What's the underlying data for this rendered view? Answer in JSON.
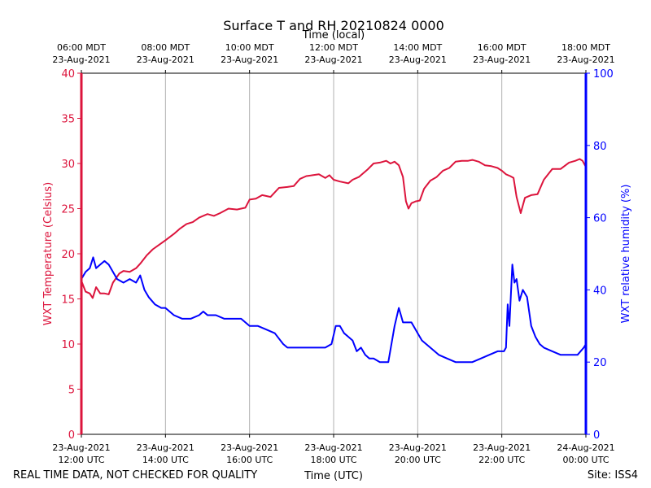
{
  "chart_data": {
    "type": "line",
    "title": "Surface T and RH 20210824 0000",
    "top_axis_label": "Time (local)",
    "xlabel": "Time (UTC)",
    "ylabel_left": "WXT Temperature (Celsius)",
    "ylabel_right": "WXT relative humidity (%)",
    "xlim": [
      12.0,
      24.0
    ],
    "ylim_left": [
      0,
      40
    ],
    "ylim_right": [
      0,
      100
    ],
    "grid": "vertical",
    "left_ticks": [
      0,
      5,
      10,
      15,
      20,
      25,
      30,
      35,
      40
    ],
    "right_ticks": [
      0,
      20,
      40,
      60,
      80,
      100
    ],
    "x_ticks": [
      {
        "x": 12,
        "line1": "23-Aug-2021",
        "line2": "12:00 UTC"
      },
      {
        "x": 14,
        "line1": "23-Aug-2021",
        "line2": "14:00 UTC"
      },
      {
        "x": 16,
        "line1": "23-Aug-2021",
        "line2": "16:00 UTC"
      },
      {
        "x": 18,
        "line1": "23-Aug-2021",
        "line2": "18:00 UTC"
      },
      {
        "x": 20,
        "line1": "23-Aug-2021",
        "line2": "20:00 UTC"
      },
      {
        "x": 22,
        "line1": "23-Aug-2021",
        "line2": "22:00 UTC"
      },
      {
        "x": 24,
        "line1": "24-Aug-2021",
        "line2": "00:00 UTC"
      }
    ],
    "top_ticks": [
      {
        "x": 12,
        "line1": "06:00 MDT",
        "line2": "23-Aug-2021"
      },
      {
        "x": 14,
        "line1": "08:00 MDT",
        "line2": "23-Aug-2021"
      },
      {
        "x": 16,
        "line1": "10:00 MDT",
        "line2": "23-Aug-2021"
      },
      {
        "x": 18,
        "line1": "12:00 MDT",
        "line2": "23-Aug-2021"
      },
      {
        "x": 20,
        "line1": "14:00 MDT",
        "line2": "23-Aug-2021"
      },
      {
        "x": 22,
        "line1": "16:00 MDT",
        "line2": "23-Aug-2021"
      },
      {
        "x": 24,
        "line1": "18:00 MDT",
        "line2": "23-Aug-2021"
      }
    ],
    "series": [
      {
        "name": "WXT Temperature",
        "axis": "left",
        "color": "#dc143c",
        "x": [
          12.0,
          12.1,
          12.2,
          12.27,
          12.35,
          12.45,
          12.55,
          12.65,
          12.75,
          12.9,
          13.0,
          13.15,
          13.3,
          13.4,
          13.55,
          13.7,
          13.85,
          14.0,
          14.2,
          14.35,
          14.5,
          14.65,
          14.8,
          15.0,
          15.15,
          15.3,
          15.5,
          15.7,
          15.9,
          16.0,
          16.15,
          16.3,
          16.5,
          16.7,
          16.9,
          17.05,
          17.2,
          17.35,
          17.5,
          17.65,
          17.8,
          17.9,
          18.0,
          18.15,
          18.35,
          18.45,
          18.6,
          18.8,
          18.95,
          19.1,
          19.25,
          19.35,
          19.45,
          19.55,
          19.65,
          19.72,
          19.78,
          19.85,
          19.95,
          20.05,
          20.15,
          20.3,
          20.45,
          20.6,
          20.75,
          20.9,
          21.05,
          21.2,
          21.3,
          21.45,
          21.6,
          21.75,
          21.9,
          22.0,
          22.1,
          22.2,
          22.28,
          22.35,
          22.45,
          22.55,
          22.7,
          22.85,
          23.0,
          23.2,
          23.4,
          23.6,
          23.75,
          23.85,
          23.92,
          24.0
        ],
        "values": [
          17.0,
          15.8,
          15.6,
          15.1,
          16.3,
          15.6,
          15.6,
          15.5,
          16.8,
          17.8,
          18.1,
          18.0,
          18.4,
          18.9,
          19.8,
          20.5,
          21.0,
          21.5,
          22.2,
          22.8,
          23.3,
          23.5,
          24.0,
          24.4,
          24.2,
          24.5,
          25.0,
          24.9,
          25.1,
          26.0,
          26.1,
          26.5,
          26.3,
          27.3,
          27.4,
          27.5,
          28.3,
          28.6,
          28.7,
          28.8,
          28.4,
          28.7,
          28.2,
          28.0,
          27.8,
          28.2,
          28.5,
          29.3,
          30.0,
          30.1,
          30.3,
          30.0,
          30.2,
          29.8,
          28.5,
          25.8,
          25.0,
          25.6,
          25.8,
          25.9,
          27.2,
          28.1,
          28.5,
          29.2,
          29.5,
          30.2,
          30.3,
          30.3,
          30.4,
          30.2,
          29.8,
          29.7,
          29.5,
          29.2,
          28.8,
          28.6,
          28.4,
          26.3,
          24.5,
          26.2,
          26.5,
          26.6,
          28.2,
          29.4,
          29.4,
          30.1,
          30.3,
          30.5,
          30.3,
          29.6
        ]
      },
      {
        "name": "WXT relative humidity",
        "axis": "right",
        "color": "#0000ff",
        "x": [
          12.0,
          12.1,
          12.2,
          12.28,
          12.35,
          12.45,
          12.55,
          12.65,
          12.75,
          12.85,
          13.0,
          13.15,
          13.3,
          13.4,
          13.5,
          13.6,
          13.75,
          13.9,
          14.0,
          14.2,
          14.4,
          14.6,
          14.8,
          14.9,
          15.0,
          15.2,
          15.4,
          15.6,
          15.8,
          16.0,
          16.2,
          16.4,
          16.6,
          16.8,
          16.9,
          17.0,
          17.2,
          17.4,
          17.6,
          17.8,
          17.95,
          18.05,
          18.15,
          18.25,
          18.35,
          18.45,
          18.55,
          18.65,
          18.75,
          18.85,
          18.95,
          19.1,
          19.3,
          19.45,
          19.55,
          19.6,
          19.65,
          19.75,
          19.85,
          20.0,
          20.1,
          20.3,
          20.5,
          20.7,
          20.9,
          21.1,
          21.3,
          21.5,
          21.7,
          21.9,
          22.05,
          22.1,
          22.14,
          22.18,
          22.25,
          22.3,
          22.35,
          22.42,
          22.5,
          22.6,
          22.7,
          22.8,
          22.9,
          23.0,
          23.2,
          23.4,
          23.6,
          23.8,
          23.95,
          24.0
        ],
        "values": [
          43,
          45,
          46,
          49,
          46,
          47,
          48,
          47,
          45,
          43,
          42,
          43,
          42,
          44,
          40,
          38,
          36,
          35,
          35,
          33,
          32,
          32,
          33,
          34,
          33,
          33,
          32,
          32,
          32,
          30,
          30,
          29,
          28,
          25,
          24,
          24,
          24,
          24,
          24,
          24,
          25,
          30,
          30,
          28,
          27,
          26,
          23,
          24,
          22,
          21,
          21,
          20,
          20,
          30,
          35,
          33,
          31,
          31,
          31,
          28,
          26,
          24,
          22,
          21,
          20,
          20,
          20,
          21,
          22,
          23,
          23,
          24,
          36,
          30,
          47,
          42,
          43,
          37,
          40,
          38,
          30,
          27,
          25,
          24,
          23,
          22,
          22,
          22,
          24,
          25
        ]
      }
    ]
  },
  "footer": {
    "left_note": "REAL TIME DATA, NOT CHECKED FOR QUALITY",
    "site": "Site: ISS4"
  }
}
